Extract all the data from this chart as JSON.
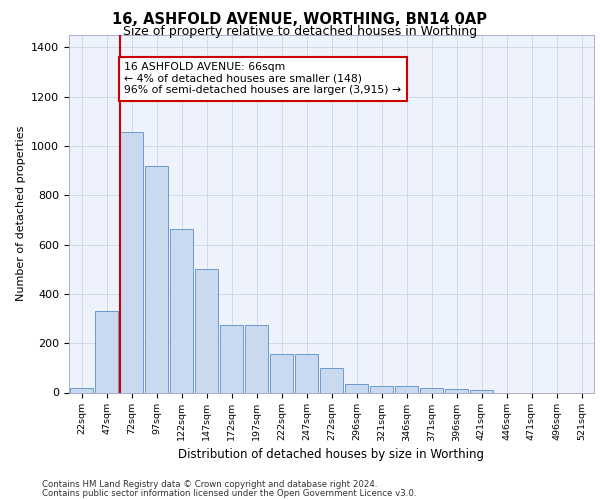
{
  "title_line1": "16, ASHFOLD AVENUE, WORTHING, BN14 0AP",
  "title_line2": "Size of property relative to detached houses in Worthing",
  "xlabel": "Distribution of detached houses by size in Worthing",
  "ylabel": "Number of detached properties",
  "bin_labels": [
    "22sqm",
    "47sqm",
    "72sqm",
    "97sqm",
    "122sqm",
    "147sqm",
    "172sqm",
    "197sqm",
    "222sqm",
    "247sqm",
    "272sqm",
    "296sqm",
    "321sqm",
    "346sqm",
    "371sqm",
    "396sqm",
    "421sqm",
    "446sqm",
    "471sqm",
    "496sqm",
    "521sqm"
  ],
  "bar_values": [
    20,
    330,
    1055,
    920,
    665,
    500,
    275,
    275,
    155,
    155,
    100,
    35,
    25,
    25,
    20,
    15,
    10,
    0,
    0,
    0,
    0
  ],
  "bar_color": "#c9d9f0",
  "bar_edge_color": "#5b8dc8",
  "grid_color": "#d0d8ec",
  "background_color": "#eef2fa",
  "red_line_x": 1.55,
  "annotation_text_line1": "16 ASHFOLD AVENUE: 66sqm",
  "annotation_text_line2": "← 4% of detached houses are smaller (148)",
  "annotation_text_line3": "96% of semi-detached houses are larger (3,915) →",
  "annotation_box_color": "#ffffff",
  "annotation_border_color": "#cc0000",
  "ylim": [
    0,
    1450
  ],
  "yticks": [
    0,
    200,
    400,
    600,
    800,
    1000,
    1200,
    1400
  ],
  "footer_line1": "Contains HM Land Registry data © Crown copyright and database right 2024.",
  "footer_line2": "Contains public sector information licensed under the Open Government Licence v3.0."
}
